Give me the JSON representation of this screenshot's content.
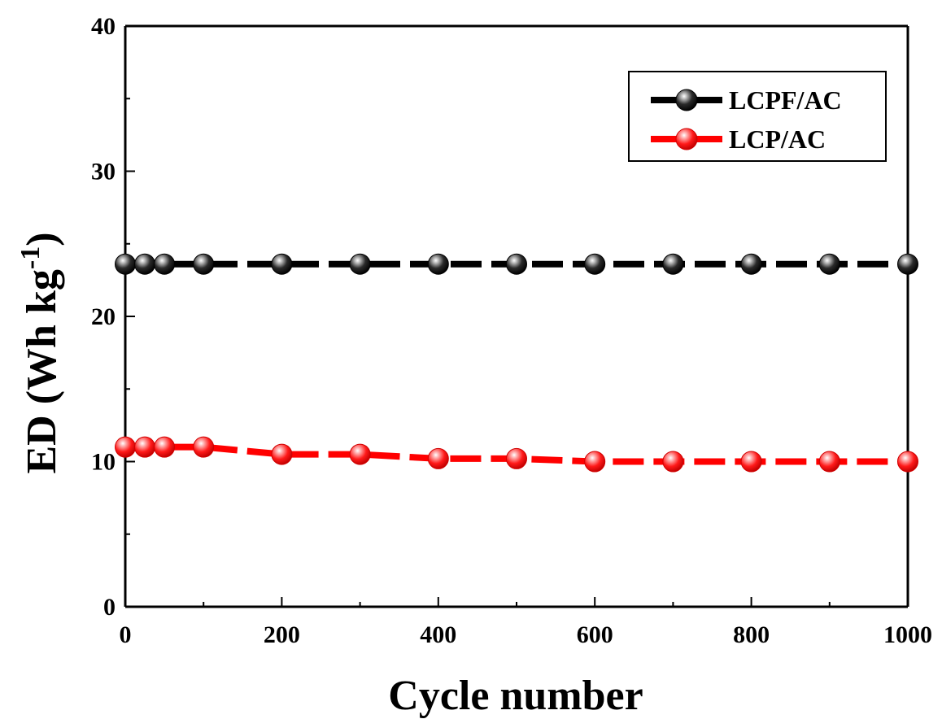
{
  "chart_data": {
    "type": "line",
    "xlabel": "Cycle number",
    "ylabel": {
      "main": "ED (Wh kg",
      "sup": "-1",
      "close": ")"
    },
    "xlim": [
      0,
      1000
    ],
    "ylim": [
      0,
      40
    ],
    "xticks": [
      0,
      200,
      400,
      600,
      800,
      1000
    ],
    "yticks": [
      0,
      10,
      20,
      30,
      40
    ],
    "grid": false,
    "legend_position": "top-right",
    "x": [
      0,
      25,
      50,
      100,
      200,
      300,
      400,
      500,
      600,
      700,
      800,
      900,
      1000
    ],
    "series": [
      {
        "name": "LCPF/AC",
        "color": "#000000",
        "marker": "sphere",
        "values": [
          23.6,
          23.6,
          23.6,
          23.6,
          23.6,
          23.6,
          23.6,
          23.6,
          23.6,
          23.6,
          23.6,
          23.6,
          23.6
        ]
      },
      {
        "name": "LCP/AC",
        "color": "#ff0000",
        "marker": "sphere",
        "values": [
          11.0,
          11.0,
          11.0,
          11.0,
          10.5,
          10.5,
          10.2,
          10.2,
          10.0,
          10.0,
          10.0,
          10.0,
          10.0
        ]
      }
    ]
  }
}
